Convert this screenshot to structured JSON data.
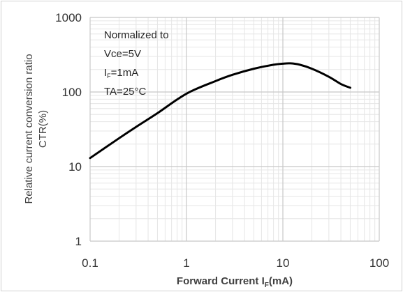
{
  "chart_data": {
    "type": "line",
    "x_scale": "log",
    "y_scale": "log",
    "xlim": [
      0.1,
      100
    ],
    "ylim": [
      1,
      1000
    ],
    "x_ticks": [
      "0.1",
      "1",
      "10",
      "100"
    ],
    "y_ticks": [
      "1",
      "10",
      "100",
      "1000"
    ],
    "xlabel": {
      "main": "Forward Current I",
      "sub": "F",
      "tail": "(mA)"
    },
    "ylabel_lines": [
      "Relative current conversion ratio",
      "CTR(%)"
    ],
    "grid": true,
    "legend": "none",
    "annotations": [
      {
        "text": "Normalized to"
      },
      {
        "text": "Vce=5V"
      },
      {
        "main": "I",
        "sub": "F",
        "tail": "=1mA"
      },
      {
        "text": "TA=25°C"
      }
    ],
    "series": [
      {
        "color": "#000000",
        "x": [
          0.1,
          0.2,
          0.3,
          0.5,
          1,
          2,
          3,
          5,
          8,
          10,
          12,
          15,
          20,
          30,
          40,
          50
        ],
        "y": [
          13,
          24,
          34,
          52,
          95,
          140,
          170,
          205,
          232,
          240,
          242,
          232,
          205,
          160,
          128,
          114
        ]
      }
    ]
  }
}
